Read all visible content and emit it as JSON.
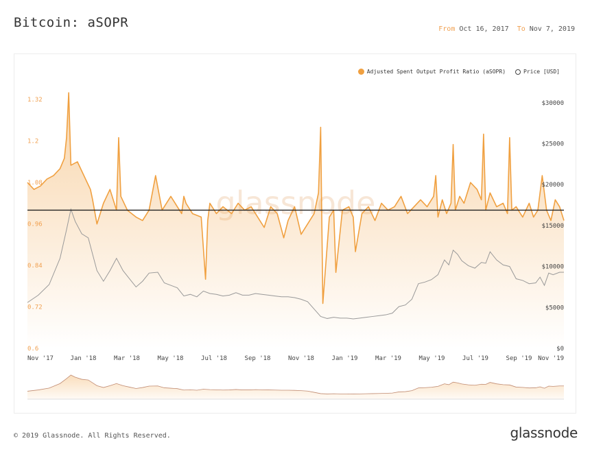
{
  "header": {
    "title": "Bitcoin: aSOPR",
    "from_label": "From",
    "from_date": "Oct 16, 2017",
    "to_label": "To",
    "to_date": "Nov 7, 2019"
  },
  "legend": {
    "asopr_label": "Adjusted Spent Output Profit Ratio (aSOPR)",
    "price_label": "Price [USD]"
  },
  "footer": {
    "copyright": "© 2019 Glassnode. All Rights Reserved.",
    "logo": "glassnode"
  },
  "watermark": "glassnode",
  "colors": {
    "asopr": "#f0a040",
    "price": "#999999",
    "baseline": "#222222",
    "left_axis": "#f0a050"
  },
  "chart_data": {
    "type": "line",
    "x_tick_labels": [
      "Nov '17",
      "Jan '18",
      "Mar '18",
      "May '18",
      "Jul '18",
      "Sep '18",
      "Nov '18",
      "Jan '19",
      "Mar '19",
      "May '19",
      "Jul '19",
      "Sep '19",
      "Nov '19"
    ],
    "left_axis": {
      "ticks": [
        0.6,
        0.72,
        0.84,
        0.96,
        1.08,
        1.2,
        1.32
      ],
      "tick_labels": [
        "0.6",
        "0.72",
        "0.84",
        "0.96",
        "1.08",
        "1.2",
        "1.32"
      ],
      "ylim": [
        0.6,
        1.37
      ]
    },
    "right_axis": {
      "ticks": [
        0,
        5000,
        10000,
        15000,
        20000,
        25000,
        30000
      ],
      "tick_labels": [
        "$0",
        "$5000",
        "$10000",
        "$15000",
        "$20000",
        "$25000",
        "$30000"
      ],
      "ylim": [
        0,
        32500
      ]
    },
    "reference_line": 1.0,
    "grid": false,
    "legend_position": "top-right",
    "x_domain": [
      0,
      24.7
    ],
    "series": [
      {
        "name": "Adjusted Spent Output Profit Ratio (aSOPR)",
        "axis": "left",
        "x": [
          0,
          0.3,
          0.6,
          0.9,
          1.2,
          1.5,
          1.7,
          1.8,
          1.9,
          2.0,
          2.3,
          2.6,
          2.9,
          3.0,
          3.2,
          3.5,
          3.8,
          4.1,
          4.2,
          4.3,
          4.6,
          5.0,
          5.3,
          5.6,
          5.9,
          6.2,
          6.6,
          6.9,
          7.1,
          7.2,
          7.3,
          7.6,
          8.0,
          8.2,
          8.3,
          8.4,
          8.7,
          9.0,
          9.4,
          9.7,
          10.0,
          10.3,
          10.6,
          10.9,
          11.2,
          11.5,
          11.8,
          12.0,
          12.3,
          12.6,
          12.9,
          13.2,
          13.4,
          13.5,
          13.6,
          13.9,
          14.1,
          14.2,
          14.5,
          14.8,
          15.0,
          15.1,
          15.4,
          15.7,
          16.0,
          16.3,
          16.6,
          16.9,
          17.2,
          17.5,
          17.8,
          18.1,
          18.4,
          18.7,
          18.8,
          18.9,
          19.1,
          19.3,
          19.5,
          19.6,
          19.7,
          19.9,
          20.1,
          20.4,
          20.7,
          20.9,
          21.0,
          21.1,
          21.3,
          21.6,
          21.9,
          22.1,
          22.2,
          22.3,
          22.5,
          22.8,
          23.1,
          23.3,
          23.5,
          23.7,
          23.9,
          24.1,
          24.3,
          24.5,
          24.7
        ],
        "y": [
          1.08,
          1.06,
          1.07,
          1.09,
          1.1,
          1.12,
          1.15,
          1.21,
          1.34,
          1.13,
          1.14,
          1.1,
          1.06,
          1.03,
          0.96,
          1.02,
          1.06,
          1.0,
          1.21,
          1.04,
          1.0,
          0.98,
          0.97,
          1.0,
          1.1,
          1.0,
          1.04,
          1.01,
          0.99,
          1.04,
          1.02,
          0.99,
          0.98,
          0.8,
          0.97,
          1.02,
          0.99,
          1.01,
          0.99,
          1.02,
          1.0,
          1.01,
          0.98,
          0.95,
          1.01,
          0.99,
          0.92,
          0.97,
          1.01,
          0.93,
          0.96,
          0.99,
          1.05,
          1.24,
          0.73,
          0.98,
          1.0,
          0.82,
          1.0,
          1.01,
          0.98,
          0.88,
          0.99,
          1.01,
          0.97,
          1.02,
          1.0,
          1.01,
          1.04,
          0.99,
          1.01,
          1.03,
          1.01,
          1.04,
          1.1,
          0.98,
          1.03,
          0.99,
          1.02,
          1.19,
          1.0,
          1.04,
          1.02,
          1.08,
          1.06,
          1.03,
          1.22,
          1.0,
          1.05,
          1.01,
          1.02,
          0.99,
          1.21,
          1.0,
          1.01,
          0.98,
          1.02,
          0.98,
          1.0,
          1.1,
          1.0,
          0.97,
          1.03,
          1.01,
          0.97
        ]
      },
      {
        "name": "Price [USD]",
        "axis": "right",
        "x": [
          0,
          0.5,
          1.0,
          1.5,
          1.8,
          2.0,
          2.2,
          2.5,
          2.8,
          3.0,
          3.2,
          3.5,
          3.8,
          4.1,
          4.4,
          4.7,
          5.0,
          5.3,
          5.6,
          6.0,
          6.3,
          6.6,
          6.9,
          7.2,
          7.5,
          7.8,
          8.1,
          8.4,
          8.7,
          9.0,
          9.3,
          9.6,
          9.9,
          10.2,
          10.5,
          10.8,
          11.1,
          11.4,
          11.7,
          12.0,
          12.3,
          12.6,
          12.9,
          13.2,
          13.5,
          13.8,
          14.1,
          14.4,
          14.7,
          15.0,
          15.3,
          15.6,
          15.9,
          16.2,
          16.5,
          16.8,
          17.1,
          17.4,
          17.7,
          18.0,
          18.3,
          18.6,
          18.9,
          19.2,
          19.4,
          19.6,
          19.8,
          20.0,
          20.3,
          20.6,
          20.9,
          21.1,
          21.3,
          21.6,
          21.9,
          22.2,
          22.5,
          22.8,
          23.1,
          23.4,
          23.6,
          23.8,
          24.0,
          24.2,
          24.5,
          24.7
        ],
        "y": [
          5600,
          6500,
          7800,
          11000,
          14500,
          17000,
          15500,
          14000,
          13500,
          11500,
          9500,
          8200,
          9500,
          11000,
          9500,
          8500,
          7500,
          8200,
          9200,
          9300,
          8000,
          7700,
          7400,
          6400,
          6600,
          6300,
          7000,
          6700,
          6600,
          6400,
          6500,
          6800,
          6500,
          6500,
          6700,
          6600,
          6500,
          6400,
          6300,
          6300,
          6200,
          6000,
          5700,
          4800,
          3900,
          3650,
          3800,
          3700,
          3700,
          3600,
          3700,
          3800,
          3900,
          4000,
          4100,
          4300,
          5100,
          5300,
          6000,
          7900,
          8100,
          8400,
          9000,
          10800,
          10200,
          12000,
          11500,
          10700,
          10100,
          9800,
          10500,
          10400,
          11800,
          10800,
          10200,
          10000,
          8500,
          8300,
          7900,
          8000,
          8700,
          7700,
          9200,
          9000,
          9300,
          9300
        ]
      }
    ]
  }
}
